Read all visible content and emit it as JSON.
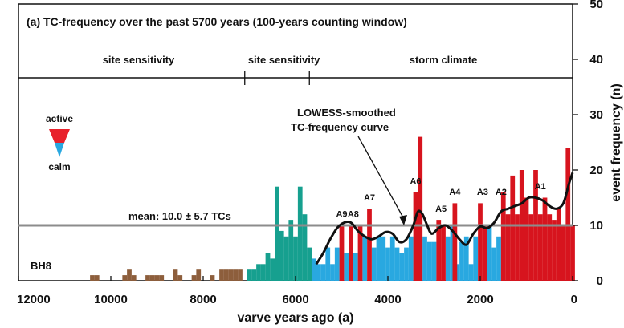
{
  "chart_data": {
    "type": "bar",
    "title": "(a)  TC-frequency over the past 5700 years (100-years counting window)",
    "xlabel": "varve years ago (a)",
    "ylabel": "event frequency (n)",
    "xlim": [
      12000,
      0
    ],
    "ylim": [
      0,
      50
    ],
    "x_ticks": [
      12000,
      10000,
      8000,
      6000,
      4000,
      2000,
      0
    ],
    "y_ticks": [
      0,
      10,
      20,
      30,
      40,
      50
    ],
    "core_label": "BH8",
    "period_labels": [
      {
        "text": "site sensitivity",
        "x": 9400
      },
      {
        "text": "site sensitivity",
        "x": 6250
      },
      {
        "text": "storm climate",
        "x": 2800
      }
    ],
    "period_boundaries_x": [
      7100,
      5700
    ],
    "mean_line": {
      "value": 10.0,
      "label": "mean: 10.0 ± 5.7 TCs"
    },
    "smooth_label": [
      "LOWESS-smoothed",
      "TC-frequency curve"
    ],
    "legend": {
      "active_label": "active",
      "calm_label": "calm",
      "active_color": "#e8212b",
      "calm_color": "#29a8e0"
    },
    "bar_width_years": 100,
    "series": [
      {
        "name": "brown",
        "color": "#8d5e3c",
        "values": [
          {
            "x": 10400,
            "y": 1
          },
          {
            "x": 10300,
            "y": 1
          },
          {
            "x": 9700,
            "y": 1
          },
          {
            "x": 9600,
            "y": 2
          },
          {
            "x": 9500,
            "y": 1
          },
          {
            "x": 9200,
            "y": 1
          },
          {
            "x": 9100,
            "y": 1
          },
          {
            "x": 9000,
            "y": 1
          },
          {
            "x": 8900,
            "y": 1
          },
          {
            "x": 8600,
            "y": 2
          },
          {
            "x": 8500,
            "y": 1
          },
          {
            "x": 8200,
            "y": 1
          },
          {
            "x": 8100,
            "y": 2
          },
          {
            "x": 7800,
            "y": 1
          },
          {
            "x": 7600,
            "y": 2
          },
          {
            "x": 7500,
            "y": 2
          },
          {
            "x": 7400,
            "y": 2
          },
          {
            "x": 7300,
            "y": 2
          },
          {
            "x": 7200,
            "y": 2
          }
        ]
      },
      {
        "name": "teal",
        "color": "#16a08f",
        "values": [
          {
            "x": 7000,
            "y": 2
          },
          {
            "x": 6900,
            "y": 2
          },
          {
            "x": 6800,
            "y": 3
          },
          {
            "x": 6700,
            "y": 3
          },
          {
            "x": 6600,
            "y": 5
          },
          {
            "x": 6500,
            "y": 4
          },
          {
            "x": 6400,
            "y": 17
          },
          {
            "x": 6300,
            "y": 9
          },
          {
            "x": 6200,
            "y": 8
          },
          {
            "x": 6100,
            "y": 11
          },
          {
            "x": 6000,
            "y": 8
          },
          {
            "x": 5900,
            "y": 17
          },
          {
            "x": 5800,
            "y": 12
          },
          {
            "x": 5700,
            "y": 6
          }
        ]
      },
      {
        "name": "blue",
        "color": "#29a8e0",
        "values": [
          {
            "x": 5600,
            "y": 4
          },
          {
            "x": 5500,
            "y": 3
          },
          {
            "x": 5400,
            "y": 3
          },
          {
            "x": 5300,
            "y": 6
          },
          {
            "x": 5200,
            "y": 3
          },
          {
            "x": 5100,
            "y": 6
          },
          {
            "x": 4900,
            "y": 5
          },
          {
            "x": 4700,
            "y": 5
          },
          {
            "x": 4500,
            "y": 8
          },
          {
            "x": 4300,
            "y": 6
          },
          {
            "x": 4200,
            "y": 8
          },
          {
            "x": 4100,
            "y": 8
          },
          {
            "x": 4000,
            "y": 6
          },
          {
            "x": 3900,
            "y": 8
          },
          {
            "x": 3800,
            "y": 6
          },
          {
            "x": 3700,
            "y": 5
          },
          {
            "x": 3600,
            "y": 6
          },
          {
            "x": 3500,
            "y": 8
          },
          {
            "x": 3200,
            "y": 8
          },
          {
            "x": 3100,
            "y": 7
          },
          {
            "x": 3000,
            "y": 7
          },
          {
            "x": 2700,
            "y": 8
          },
          {
            "x": 2600,
            "y": 10
          },
          {
            "x": 2500,
            "y": 3
          },
          {
            "x": 2400,
            "y": 7
          },
          {
            "x": 2300,
            "y": 8
          },
          {
            "x": 2200,
            "y": 3
          },
          {
            "x": 2100,
            "y": 8
          },
          {
            "x": 1800,
            "y": 10
          },
          {
            "x": 1700,
            "y": 6
          },
          {
            "x": 1600,
            "y": 8
          }
        ]
      },
      {
        "name": "red",
        "color": "#d7141e",
        "values": [
          {
            "x": 5000,
            "y": 10
          },
          {
            "x": 4800,
            "y": 10
          },
          {
            "x": 4600,
            "y": 10
          },
          {
            "x": 4400,
            "y": 13
          },
          {
            "x": 3400,
            "y": 16
          },
          {
            "x": 3300,
            "y": 26
          },
          {
            "x": 2900,
            "y": 11
          },
          {
            "x": 2800,
            "y": 10
          },
          {
            "x": 2550,
            "y": 14
          },
          {
            "x": 2000,
            "y": 14
          },
          {
            "x": 1900,
            "y": 10
          },
          {
            "x": 1500,
            "y": 16
          },
          {
            "x": 1400,
            "y": 12
          },
          {
            "x": 1300,
            "y": 19
          },
          {
            "x": 1200,
            "y": 12
          },
          {
            "x": 1100,
            "y": 20
          },
          {
            "x": 1000,
            "y": 15
          },
          {
            "x": 900,
            "y": 12
          },
          {
            "x": 800,
            "y": 20
          },
          {
            "x": 700,
            "y": 12
          },
          {
            "x": 600,
            "y": 15
          },
          {
            "x": 500,
            "y": 12
          },
          {
            "x": 400,
            "y": 11
          },
          {
            "x": 300,
            "y": 13
          },
          {
            "x": 200,
            "y": 10
          },
          {
            "x": 100,
            "y": 24
          },
          {
            "x": 0,
            "y": 10
          }
        ]
      }
    ],
    "lowess": {
      "name": "LOWESS-smoothed TC-frequency curve",
      "color": "#111111",
      "points": [
        [
          5550,
          3
        ],
        [
          5400,
          5
        ],
        [
          5250,
          7.5
        ],
        [
          5100,
          9.5
        ],
        [
          4950,
          10.5
        ],
        [
          4800,
          10.5
        ],
        [
          4650,
          9
        ],
        [
          4500,
          8
        ],
        [
          4350,
          7.5
        ],
        [
          4200,
          8
        ],
        [
          4050,
          8.8
        ],
        [
          3900,
          8.5
        ],
        [
          3750,
          7
        ],
        [
          3600,
          7.5
        ],
        [
          3450,
          10
        ],
        [
          3350,
          12.5
        ],
        [
          3250,
          12
        ],
        [
          3150,
          10
        ],
        [
          3050,
          8.5
        ],
        [
          2900,
          9.5
        ],
        [
          2750,
          10
        ],
        [
          2600,
          9
        ],
        [
          2450,
          7.5
        ],
        [
          2300,
          6.5
        ],
        [
          2150,
          8.5
        ],
        [
          2000,
          9.8
        ],
        [
          1850,
          9.5
        ],
        [
          1700,
          10.5
        ],
        [
          1550,
          12.5
        ],
        [
          1400,
          13
        ],
        [
          1250,
          13.5
        ],
        [
          1100,
          14
        ],
        [
          950,
          15
        ],
        [
          800,
          15
        ],
        [
          650,
          14.5
        ],
        [
          500,
          13.5
        ],
        [
          350,
          13
        ],
        [
          200,
          14
        ],
        [
          80,
          17.5
        ],
        [
          0,
          19.5
        ]
      ]
    },
    "annotations": [
      {
        "text": "A9",
        "x": 5000,
        "y": 11.2
      },
      {
        "text": "A8",
        "x": 4750,
        "y": 11.2
      },
      {
        "text": "A7",
        "x": 4400,
        "y": 14.2
      },
      {
        "text": "A6",
        "x": 3400,
        "y": 17.2
      },
      {
        "text": "A5",
        "x": 2850,
        "y": 12.2
      },
      {
        "text": "A4",
        "x": 2550,
        "y": 15.2
      },
      {
        "text": "A3",
        "x": 1950,
        "y": 15.2
      },
      {
        "text": "A2",
        "x": 1550,
        "y": 15.2
      },
      {
        "text": "A1",
        "x": 700,
        "y": 16.2
      }
    ]
  }
}
